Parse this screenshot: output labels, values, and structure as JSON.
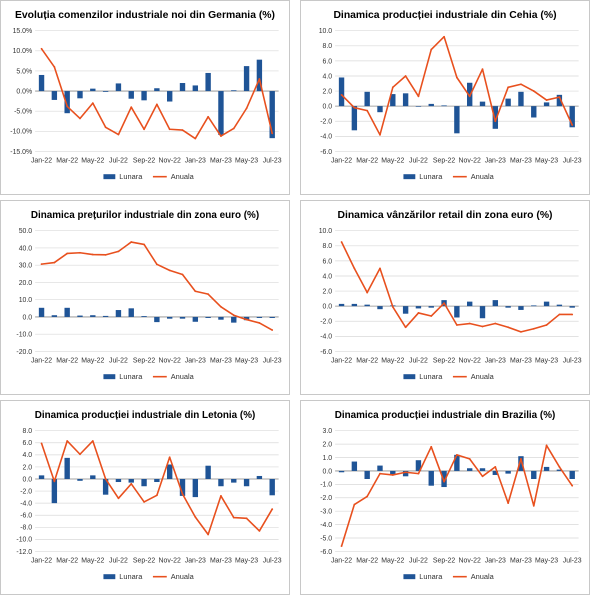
{
  "chart_data": [
    {
      "type": "bar",
      "title": "Evoluția comenzilor industriale noi din Germania (%)",
      "categories": [
        "Jan-22",
        "Feb-22",
        "Mar-22",
        "Apr-22",
        "May-22",
        "Jun-22",
        "Jul-22",
        "Aug-22",
        "Sep-22",
        "Oct-22",
        "Nov-22",
        "Dec-22",
        "Jan-23",
        "Feb-23",
        "Mar-23",
        "Apr-23",
        "May-23",
        "Jun-23",
        "Jul-23"
      ],
      "x_tick_labels": [
        "Jan-22",
        "Mar-22",
        "May-22",
        "Jul-22",
        "Sep-22",
        "Nov-22",
        "Jan-23",
        "Mar-23",
        "May-23",
        "Jul-23"
      ],
      "ylim": [
        -15,
        15
      ],
      "y_ticks": [
        15,
        10,
        5,
        0,
        -5,
        -10,
        -15
      ],
      "y_tick_labels": [
        "15.0%",
        "10.0%",
        "5.0%",
        "0.0%",
        "-5.0%",
        "-10.0%",
        "-15.0%"
      ],
      "grid": true,
      "legend": "bottom",
      "series": [
        {
          "name": "Lunara",
          "kind": "bar",
          "color": "#1f5496",
          "values": [
            4.0,
            -2.2,
            -5.5,
            -1.8,
            0.6,
            -0.2,
            1.9,
            -1.9,
            -2.3,
            0.7,
            -2.6,
            2.0,
            1.4,
            4.5,
            -10.9,
            0.2,
            6.2,
            7.8,
            -11.7
          ]
        },
        {
          "name": "Anuala",
          "kind": "line",
          "color": "#e8501e",
          "values": [
            10.5,
            6.0,
            -3.8,
            -6.8,
            -3.0,
            -9.0,
            -10.8,
            -4.0,
            -9.5,
            -3.3,
            -9.5,
            -9.7,
            -11.8,
            -6.4,
            -11.2,
            -9.3,
            -4.3,
            3.0,
            -10.5
          ]
        }
      ]
    },
    {
      "type": "bar",
      "title": "Dinamica producției industriale din Cehia (%)",
      "categories": [
        "Jan-22",
        "Feb-22",
        "Mar-22",
        "Apr-22",
        "May-22",
        "Jun-22",
        "Jul-22",
        "Aug-22",
        "Sep-22",
        "Oct-22",
        "Nov-22",
        "Dec-22",
        "Jan-23",
        "Feb-23",
        "Mar-23",
        "Apr-23",
        "May-23",
        "Jun-23",
        "Jul-23"
      ],
      "x_tick_labels": [
        "Jan-22",
        "Mar-22",
        "May-22",
        "Jul-22",
        "Sep-22",
        "Nov-22",
        "Jan-23",
        "Mar-23",
        "May-23",
        "Jul-23"
      ],
      "ylim": [
        -6,
        10
      ],
      "y_ticks": [
        10,
        8,
        6,
        4,
        2,
        0,
        -2,
        -4,
        -6
      ],
      "y_tick_labels": [
        "10.0",
        "8.0",
        "6.0",
        "4.0",
        "2.0",
        "0.0",
        "-2.0",
        "-4.0",
        "-6.0"
      ],
      "grid": true,
      "legend": "bottom",
      "series": [
        {
          "name": "Lunara",
          "kind": "bar",
          "color": "#1f5496",
          "values": [
            3.8,
            -3.2,
            1.9,
            -0.8,
            1.6,
            1.7,
            0.0,
            0.3,
            0.1,
            -3.6,
            3.1,
            0.6,
            -3.0,
            1.0,
            1.9,
            -1.5,
            0.5,
            1.5,
            -2.8
          ]
        },
        {
          "name": "Anuala",
          "kind": "line",
          "color": "#e8501e",
          "values": [
            1.5,
            -0.2,
            -0.6,
            -3.8,
            2.5,
            4.0,
            1.3,
            7.5,
            9.2,
            3.8,
            1.3,
            4.9,
            -2.0,
            2.5,
            2.9,
            2.0,
            0.8,
            1.2,
            -2.5
          ]
        }
      ]
    },
    {
      "type": "bar",
      "title": "Dinamica prețurilor industriale din zona euro (%)",
      "categories": [
        "Jan-22",
        "Feb-22",
        "Mar-22",
        "Apr-22",
        "May-22",
        "Jun-22",
        "Jul-22",
        "Aug-22",
        "Sep-22",
        "Oct-22",
        "Nov-22",
        "Dec-22",
        "Jan-23",
        "Feb-23",
        "Mar-23",
        "Apr-23",
        "May-23",
        "Jun-23",
        "Jul-23"
      ],
      "x_tick_labels": [
        "Jan-22",
        "Mar-22",
        "May-22",
        "Jul-22",
        "Sep-22",
        "Nov-22",
        "Jan-23",
        "Mar-23",
        "May-23",
        "Jul-23"
      ],
      "ylim": [
        -20,
        50
      ],
      "y_ticks": [
        50,
        40,
        30,
        20,
        10,
        0,
        -10,
        -20
      ],
      "y_tick_labels": [
        "50.0",
        "40.0",
        "30.0",
        "20.0",
        "10.0",
        "0.0",
        "-10.0",
        "-20.0"
      ],
      "grid": true,
      "legend": "bottom",
      "series": [
        {
          "name": "Lunara",
          "kind": "bar",
          "color": "#1f5496",
          "values": [
            5.3,
            1.0,
            5.3,
            0.8,
            1.0,
            0.6,
            4.0,
            5.0,
            0.5,
            -3.0,
            -1.0,
            -1.0,
            -2.8,
            -0.6,
            -1.6,
            -3.3,
            -1.9,
            -0.6,
            -0.6
          ]
        },
        {
          "name": "Anuala",
          "kind": "line",
          "color": "#e8501e",
          "values": [
            30.6,
            31.5,
            36.8,
            37.2,
            36.2,
            36.0,
            38.0,
            43.4,
            42.0,
            30.5,
            27.0,
            24.6,
            14.9,
            13.2,
            5.9,
            1.0,
            -1.5,
            -3.5,
            -7.6
          ]
        }
      ]
    },
    {
      "type": "bar",
      "title": "Dinamica vânzărilor retail din zona euro (%)",
      "categories": [
        "Jan-22",
        "Feb-22",
        "Mar-22",
        "Apr-22",
        "May-22",
        "Jun-22",
        "Jul-22",
        "Aug-22",
        "Sep-22",
        "Oct-22",
        "Nov-22",
        "Dec-22",
        "Jan-23",
        "Feb-23",
        "Mar-23",
        "Apr-23",
        "May-23",
        "Jun-23",
        "Jul-23"
      ],
      "x_tick_labels": [
        "Jan-22",
        "Mar-22",
        "May-22",
        "Jul-22",
        "Sep-22",
        "Nov-22",
        "Jan-23",
        "Mar-23",
        "May-23",
        "Jul-23"
      ],
      "ylim": [
        -6,
        10
      ],
      "y_ticks": [
        10,
        8,
        6,
        4,
        2,
        0,
        -2,
        -4,
        -6
      ],
      "y_tick_labels": [
        "10.0",
        "8.0",
        "6.0",
        "4.0",
        "2.0",
        "0.0",
        "-2.0",
        "-4.0",
        "-6.0"
      ],
      "grid": true,
      "legend": "bottom",
      "series": [
        {
          "name": "Lunara",
          "kind": "bar",
          "color": "#1f5496",
          "values": [
            0.3,
            0.3,
            0.2,
            -0.4,
            0.1,
            -1.0,
            -0.3,
            -0.2,
            0.8,
            -1.5,
            0.6,
            -1.6,
            0.8,
            -0.2,
            -0.5,
            0.1,
            0.6,
            0.2,
            -0.2
          ]
        },
        {
          "name": "Anuala",
          "kind": "line",
          "color": "#e8501e",
          "values": [
            8.5,
            5.0,
            1.8,
            5.0,
            -0.1,
            -2.8,
            -0.9,
            -1.3,
            0.4,
            -2.5,
            -2.3,
            -2.7,
            -2.3,
            -2.8,
            -3.4,
            -3.0,
            -2.5,
            -1.1,
            -1.1
          ]
        }
      ]
    },
    {
      "type": "bar",
      "title": "Dinamica producției industriale din Letonia (%)",
      "categories": [
        "Jan-22",
        "Feb-22",
        "Mar-22",
        "Apr-22",
        "May-22",
        "Jun-22",
        "Jul-22",
        "Aug-22",
        "Sep-22",
        "Oct-22",
        "Nov-22",
        "Dec-22",
        "Jan-23",
        "Feb-23",
        "Mar-23",
        "Apr-23",
        "May-23",
        "Jun-23",
        "Jul-23"
      ],
      "x_tick_labels": [
        "Jan-22",
        "Mar-22",
        "May-22",
        "Jul-22",
        "Sep-22",
        "Nov-22",
        "Jan-23",
        "Mar-23",
        "May-23",
        "Jul-23"
      ],
      "ylim": [
        -12,
        8
      ],
      "y_ticks": [
        8,
        6,
        4,
        2,
        0,
        -2,
        -4,
        -6,
        -8,
        -10,
        -12
      ],
      "y_tick_labels": [
        "8.0",
        "6.0",
        "4.0",
        "2.0",
        "0.0",
        "-2.0",
        "-4.0",
        "-6.0",
        "-8.0",
        "-10.0",
        "-12.0"
      ],
      "grid": true,
      "legend": "bottom",
      "series": [
        {
          "name": "Lunara",
          "kind": "bar",
          "color": "#1f5496",
          "values": [
            0.6,
            -4.0,
            3.5,
            -0.3,
            0.6,
            -2.6,
            -0.5,
            -0.6,
            -1.2,
            -0.5,
            2.4,
            -2.8,
            -3.0,
            2.2,
            -1.2,
            -0.6,
            -1.2,
            0.5,
            -2.7
          ]
        },
        {
          "name": "Anuala",
          "kind": "line",
          "color": "#e8501e",
          "values": [
            5.9,
            -0.4,
            6.3,
            4.1,
            6.3,
            0.0,
            -3.2,
            -0.8,
            -3.8,
            -2.7,
            3.6,
            -2.5,
            -6.3,
            -9.2,
            -2.8,
            -6.4,
            -6.5,
            -8.6,
            -5.0
          ]
        }
      ]
    },
    {
      "type": "bar",
      "title": "Dinamica producției industriale din Brazilia (%)",
      "categories": [
        "Jan-22",
        "Feb-22",
        "Mar-22",
        "Apr-22",
        "May-22",
        "Jun-22",
        "Jul-22",
        "Aug-22",
        "Sep-22",
        "Oct-22",
        "Nov-22",
        "Dec-22",
        "Jan-23",
        "Feb-23",
        "Mar-23",
        "Apr-23",
        "May-23",
        "Jun-23",
        "Jul-23"
      ],
      "x_tick_labels": [
        "Jan-22",
        "Mar-22",
        "May-22",
        "Jul-22",
        "Sep-22",
        "Nov-22",
        "Jan-23",
        "Mar-23",
        "May-23",
        "Jul-23"
      ],
      "ylim": [
        -6,
        3
      ],
      "y_ticks": [
        3,
        2,
        1,
        0,
        -1,
        -2,
        -3,
        -4,
        -5,
        -6
      ],
      "y_tick_labels": [
        "3.0",
        "2.0",
        "1.0",
        "0.0",
        "-1.0",
        "-2.0",
        "-3.0",
        "-4.0",
        "-5.0",
        "-6.0"
      ],
      "grid": true,
      "legend": "bottom",
      "series": [
        {
          "name": "Lunara",
          "kind": "bar",
          "color": "#1f5496",
          "values": [
            -0.1,
            0.7,
            -0.6,
            0.4,
            -0.3,
            -0.4,
            0.8,
            -1.1,
            -1.2,
            1.2,
            0.2,
            0.2,
            -0.3,
            -0.2,
            1.1,
            -0.6,
            0.3,
            0.1,
            -0.6
          ]
        },
        {
          "name": "Anuala",
          "kind": "line",
          "color": "#e8501e",
          "values": [
            -5.6,
            -2.5,
            -1.9,
            -0.2,
            -0.3,
            -0.1,
            -0.2,
            1.8,
            -0.8,
            1.2,
            0.9,
            -0.4,
            0.3,
            -2.4,
            0.9,
            -2.6,
            1.9,
            0.3,
            -1.1
          ]
        }
      ]
    }
  ]
}
